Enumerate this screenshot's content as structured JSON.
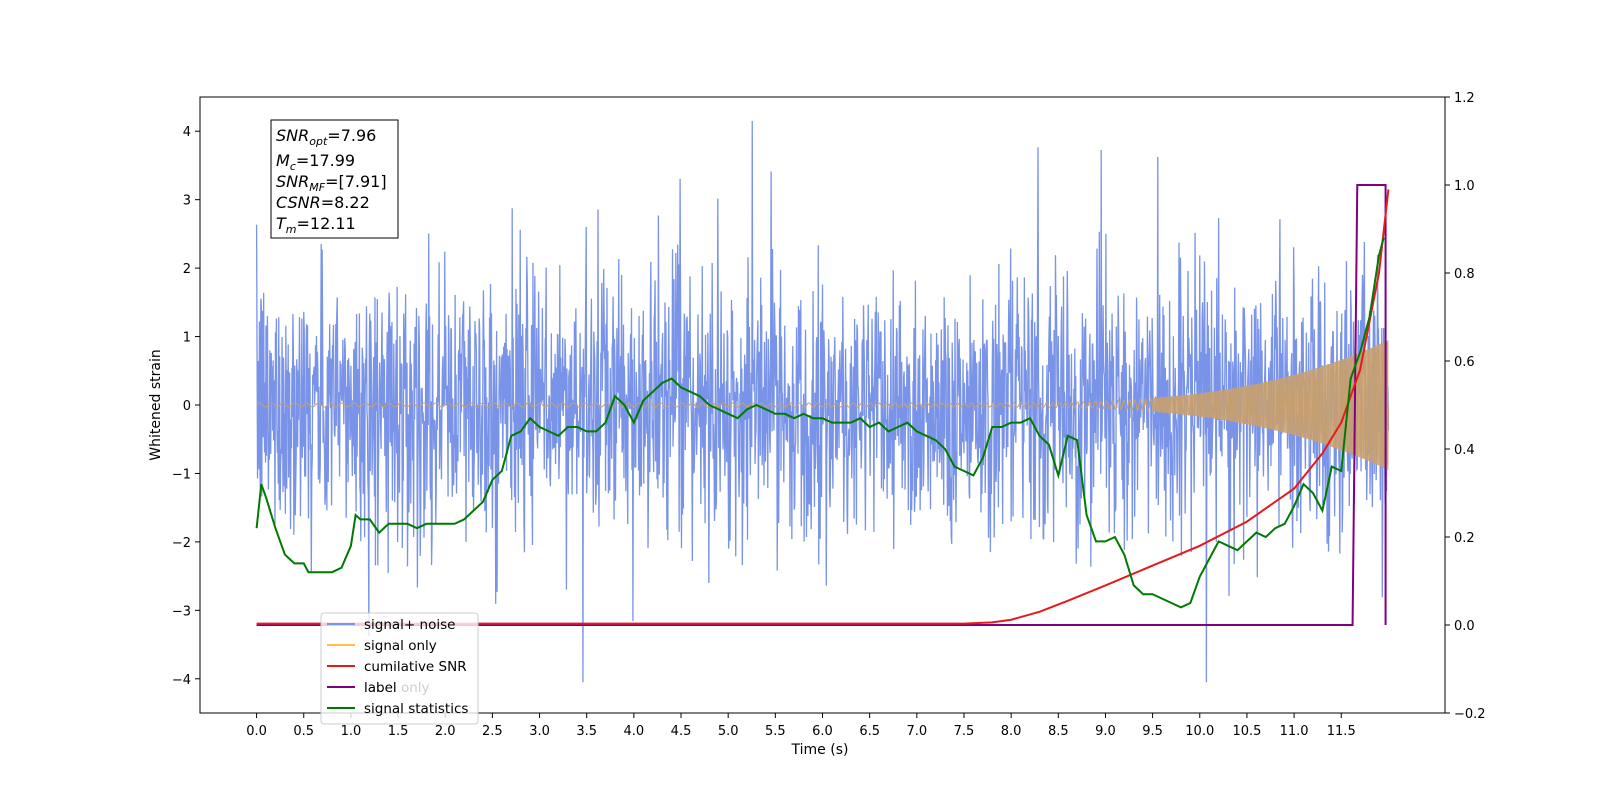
{
  "chart_data": {
    "type": "line",
    "xlabel": "Time (s)",
    "ylabel_left": "Whitened strain",
    "ylabel_right": "",
    "xlim": [
      -0.6,
      12.6
    ],
    "ylim_left": [
      -4.5,
      4.5
    ],
    "ylim_right": [
      -0.2,
      1.2
    ],
    "x_ticks": [
      "0.0",
      "0.5",
      "1.0",
      "1.5",
      "2.0",
      "2.5",
      "3.0",
      "3.5",
      "4.0",
      "4.5",
      "5.0",
      "5.5",
      "6.0",
      "6.5",
      "7.0",
      "7.5",
      "8.0",
      "8.5",
      "9.0",
      "9.5",
      "10.0",
      "10.5",
      "11.0",
      "11.5"
    ],
    "y_ticks_left": [
      "4",
      "3",
      "2",
      "1",
      "0",
      "−1",
      "−2",
      "−3",
      "−4"
    ],
    "y_ticks_right": [
      "1.2",
      "1.0",
      "0.8",
      "0.6",
      "0.4",
      "0.2",
      "0.0",
      "−0.2"
    ],
    "grid": false,
    "legend_position": "lower-left",
    "info_box": {
      "snr_opt": {
        "symbol": "SNR",
        "sub": "opt",
        "value": "=7.96"
      },
      "mc": {
        "symbol": "M",
        "sub": "c",
        "value": "=17.99"
      },
      "snr_mf": {
        "symbol": "SNR",
        "sub": "MF",
        "value": "=[7.91]"
      },
      "csnr": {
        "symbol": "CSNR",
        "value": "=8.22"
      },
      "tm": {
        "symbol": "T",
        "sub": "m",
        "value": "=12.11"
      }
    },
    "series": [
      {
        "name": "signal+ noise",
        "axis": "left",
        "color": "#7893e8",
        "style": "dense noise, amplitude roughly ±2.3 with peaks near ±4, over 0.0–12.0 s"
      },
      {
        "name": "signal only",
        "axis": "left",
        "color": "#c8a070",
        "style": "chirp, amplitude ~0 until ~8 s growing to ~±0.95 at 12.0 s"
      },
      {
        "name": "cumilative SNR",
        "axis": "right",
        "color": "#e41a1c",
        "x": [
          0.0,
          7.5,
          7.8,
          8.0,
          8.3,
          8.6,
          9.0,
          9.5,
          10.0,
          10.5,
          11.0,
          11.3,
          11.5,
          11.7,
          11.9,
          12.0
        ],
        "y": [
          0.003,
          0.003,
          0.006,
          0.012,
          0.03,
          0.055,
          0.09,
          0.135,
          0.18,
          0.235,
          0.31,
          0.39,
          0.46,
          0.58,
          0.8,
          0.99
        ]
      },
      {
        "name": "label",
        "axis": "right",
        "color": "#800080",
        "x": [
          0.0,
          11.62,
          11.67,
          11.97,
          11.97
        ],
        "y": [
          0.0,
          0.0,
          1.0,
          1.0,
          0.0
        ]
      },
      {
        "name": "label only",
        "axis": "right",
        "color": "#cccccc",
        "hidden": true
      },
      {
        "name": "signal statistics",
        "axis": "right",
        "color": "#007a00",
        "x": [
          0.0,
          0.05,
          0.1,
          0.2,
          0.3,
          0.4,
          0.5,
          0.55,
          0.6,
          0.7,
          0.8,
          0.9,
          1.0,
          1.05,
          1.1,
          1.2,
          1.3,
          1.4,
          1.5,
          1.6,
          1.7,
          1.8,
          1.9,
          2.0,
          2.1,
          2.2,
          2.3,
          2.4,
          2.5,
          2.6,
          2.7,
          2.8,
          2.9,
          3.0,
          3.1,
          3.2,
          3.3,
          3.4,
          3.5,
          3.6,
          3.7,
          3.8,
          3.9,
          4.0,
          4.1,
          4.2,
          4.3,
          4.4,
          4.5,
          4.6,
          4.7,
          4.8,
          4.9,
          5.0,
          5.1,
          5.2,
          5.3,
          5.4,
          5.5,
          5.6,
          5.7,
          5.8,
          5.9,
          6.0,
          6.1,
          6.2,
          6.3,
          6.4,
          6.5,
          6.6,
          6.7,
          6.8,
          6.9,
          7.0,
          7.1,
          7.2,
          7.3,
          7.4,
          7.5,
          7.6,
          7.7,
          7.8,
          7.9,
          8.0,
          8.1,
          8.2,
          8.3,
          8.4,
          8.5,
          8.6,
          8.7,
          8.8,
          8.9,
          9.0,
          9.1,
          9.2,
          9.3,
          9.4,
          9.5,
          9.6,
          9.7,
          9.8,
          9.9,
          10.0,
          10.1,
          10.2,
          10.3,
          10.4,
          10.5,
          10.6,
          10.7,
          10.8,
          10.9,
          11.0,
          11.1,
          11.2,
          11.3,
          11.4,
          11.5,
          11.6,
          11.7,
          11.8,
          11.9,
          11.95
        ],
        "y": [
          0.22,
          0.32,
          0.29,
          0.22,
          0.16,
          0.14,
          0.14,
          0.12,
          0.12,
          0.12,
          0.12,
          0.13,
          0.18,
          0.25,
          0.24,
          0.24,
          0.21,
          0.23,
          0.23,
          0.23,
          0.22,
          0.23,
          0.23,
          0.23,
          0.23,
          0.24,
          0.26,
          0.28,
          0.33,
          0.35,
          0.43,
          0.44,
          0.47,
          0.45,
          0.44,
          0.43,
          0.45,
          0.45,
          0.44,
          0.44,
          0.46,
          0.52,
          0.5,
          0.46,
          0.51,
          0.53,
          0.55,
          0.56,
          0.54,
          0.53,
          0.52,
          0.5,
          0.49,
          0.48,
          0.47,
          0.49,
          0.5,
          0.49,
          0.48,
          0.48,
          0.47,
          0.48,
          0.47,
          0.47,
          0.46,
          0.46,
          0.46,
          0.47,
          0.45,
          0.46,
          0.44,
          0.45,
          0.46,
          0.44,
          0.43,
          0.42,
          0.4,
          0.36,
          0.35,
          0.34,
          0.38,
          0.45,
          0.45,
          0.46,
          0.46,
          0.47,
          0.43,
          0.41,
          0.34,
          0.43,
          0.42,
          0.25,
          0.19,
          0.19,
          0.2,
          0.16,
          0.09,
          0.07,
          0.07,
          0.06,
          0.05,
          0.04,
          0.05,
          0.11,
          0.15,
          0.19,
          0.18,
          0.17,
          0.19,
          0.21,
          0.2,
          0.22,
          0.23,
          0.27,
          0.32,
          0.3,
          0.26,
          0.36,
          0.35,
          0.56,
          0.62,
          0.7,
          0.84,
          0.88
        ]
      }
    ]
  }
}
